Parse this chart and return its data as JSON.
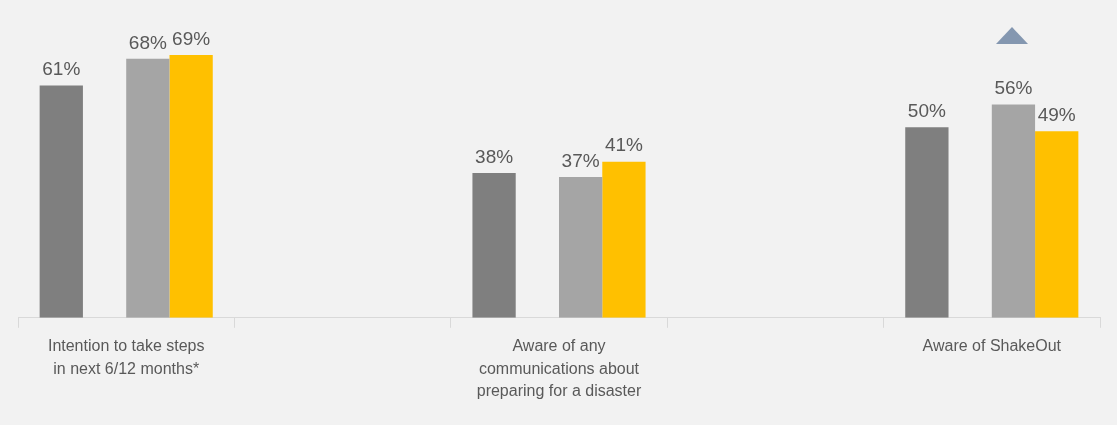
{
  "chart_data": {
    "type": "bar",
    "categories": [
      "Intention to take steps in next 6/12 months*",
      null,
      "Aware of any communications about preparing for a disaster",
      null,
      "Aware of ShakeOut"
    ],
    "series": [
      {
        "color": "#7f7f7f",
        "values": [
          61,
          null,
          38,
          null,
          50
        ],
        "value_labels": [
          "61%",
          null,
          "38%",
          null,
          "50%"
        ]
      },
      {
        "color": "#a5a5a5",
        "values": [
          68,
          null,
          37,
          null,
          56
        ],
        "value_labels": [
          "68%",
          null,
          "37%",
          null,
          "56%"
        ]
      },
      {
        "color": "#ffc000",
        "values": [
          69,
          null,
          41,
          null,
          49
        ],
        "value_labels": [
          "69%",
          null,
          "41%",
          null,
          "49%"
        ]
      }
    ],
    "tick_labels": "x",
    "grid": false,
    "legend": false
  }
}
